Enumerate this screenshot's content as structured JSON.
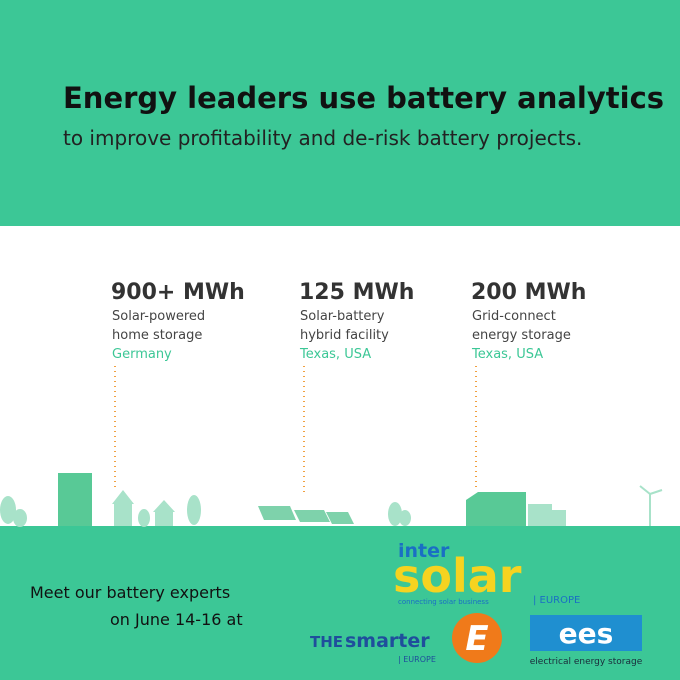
{
  "header": {
    "title": "Energy leaders use battery analytics",
    "subtitle": "to improve profitability and de-risk battery projects."
  },
  "stats": [
    {
      "value": "900+ MWh",
      "line1": "Solar-powered",
      "line2": "home storage",
      "location": "Germany"
    },
    {
      "value": "125 MWh",
      "line1": "Solar-battery",
      "line2": "hybrid facility",
      "location": "Texas, USA"
    },
    {
      "value": "200 MWh",
      "line1": "Grid-connect",
      "line2": "energy storage",
      "location": "Texas, USA"
    }
  ],
  "footer": {
    "line1": "Meet our battery experts",
    "line2": "on June 14-16 at"
  },
  "logos": {
    "intersolar": {
      "top": "inter",
      "main": "solar",
      "tagline": "connecting solar business",
      "region": "| EUROPE"
    },
    "smarter": {
      "the": "THE",
      "main": "smarter",
      "mark": "E",
      "region": "| EUROPE"
    },
    "ees": {
      "mark": "ees",
      "caption": "electrical energy storage"
    }
  }
}
